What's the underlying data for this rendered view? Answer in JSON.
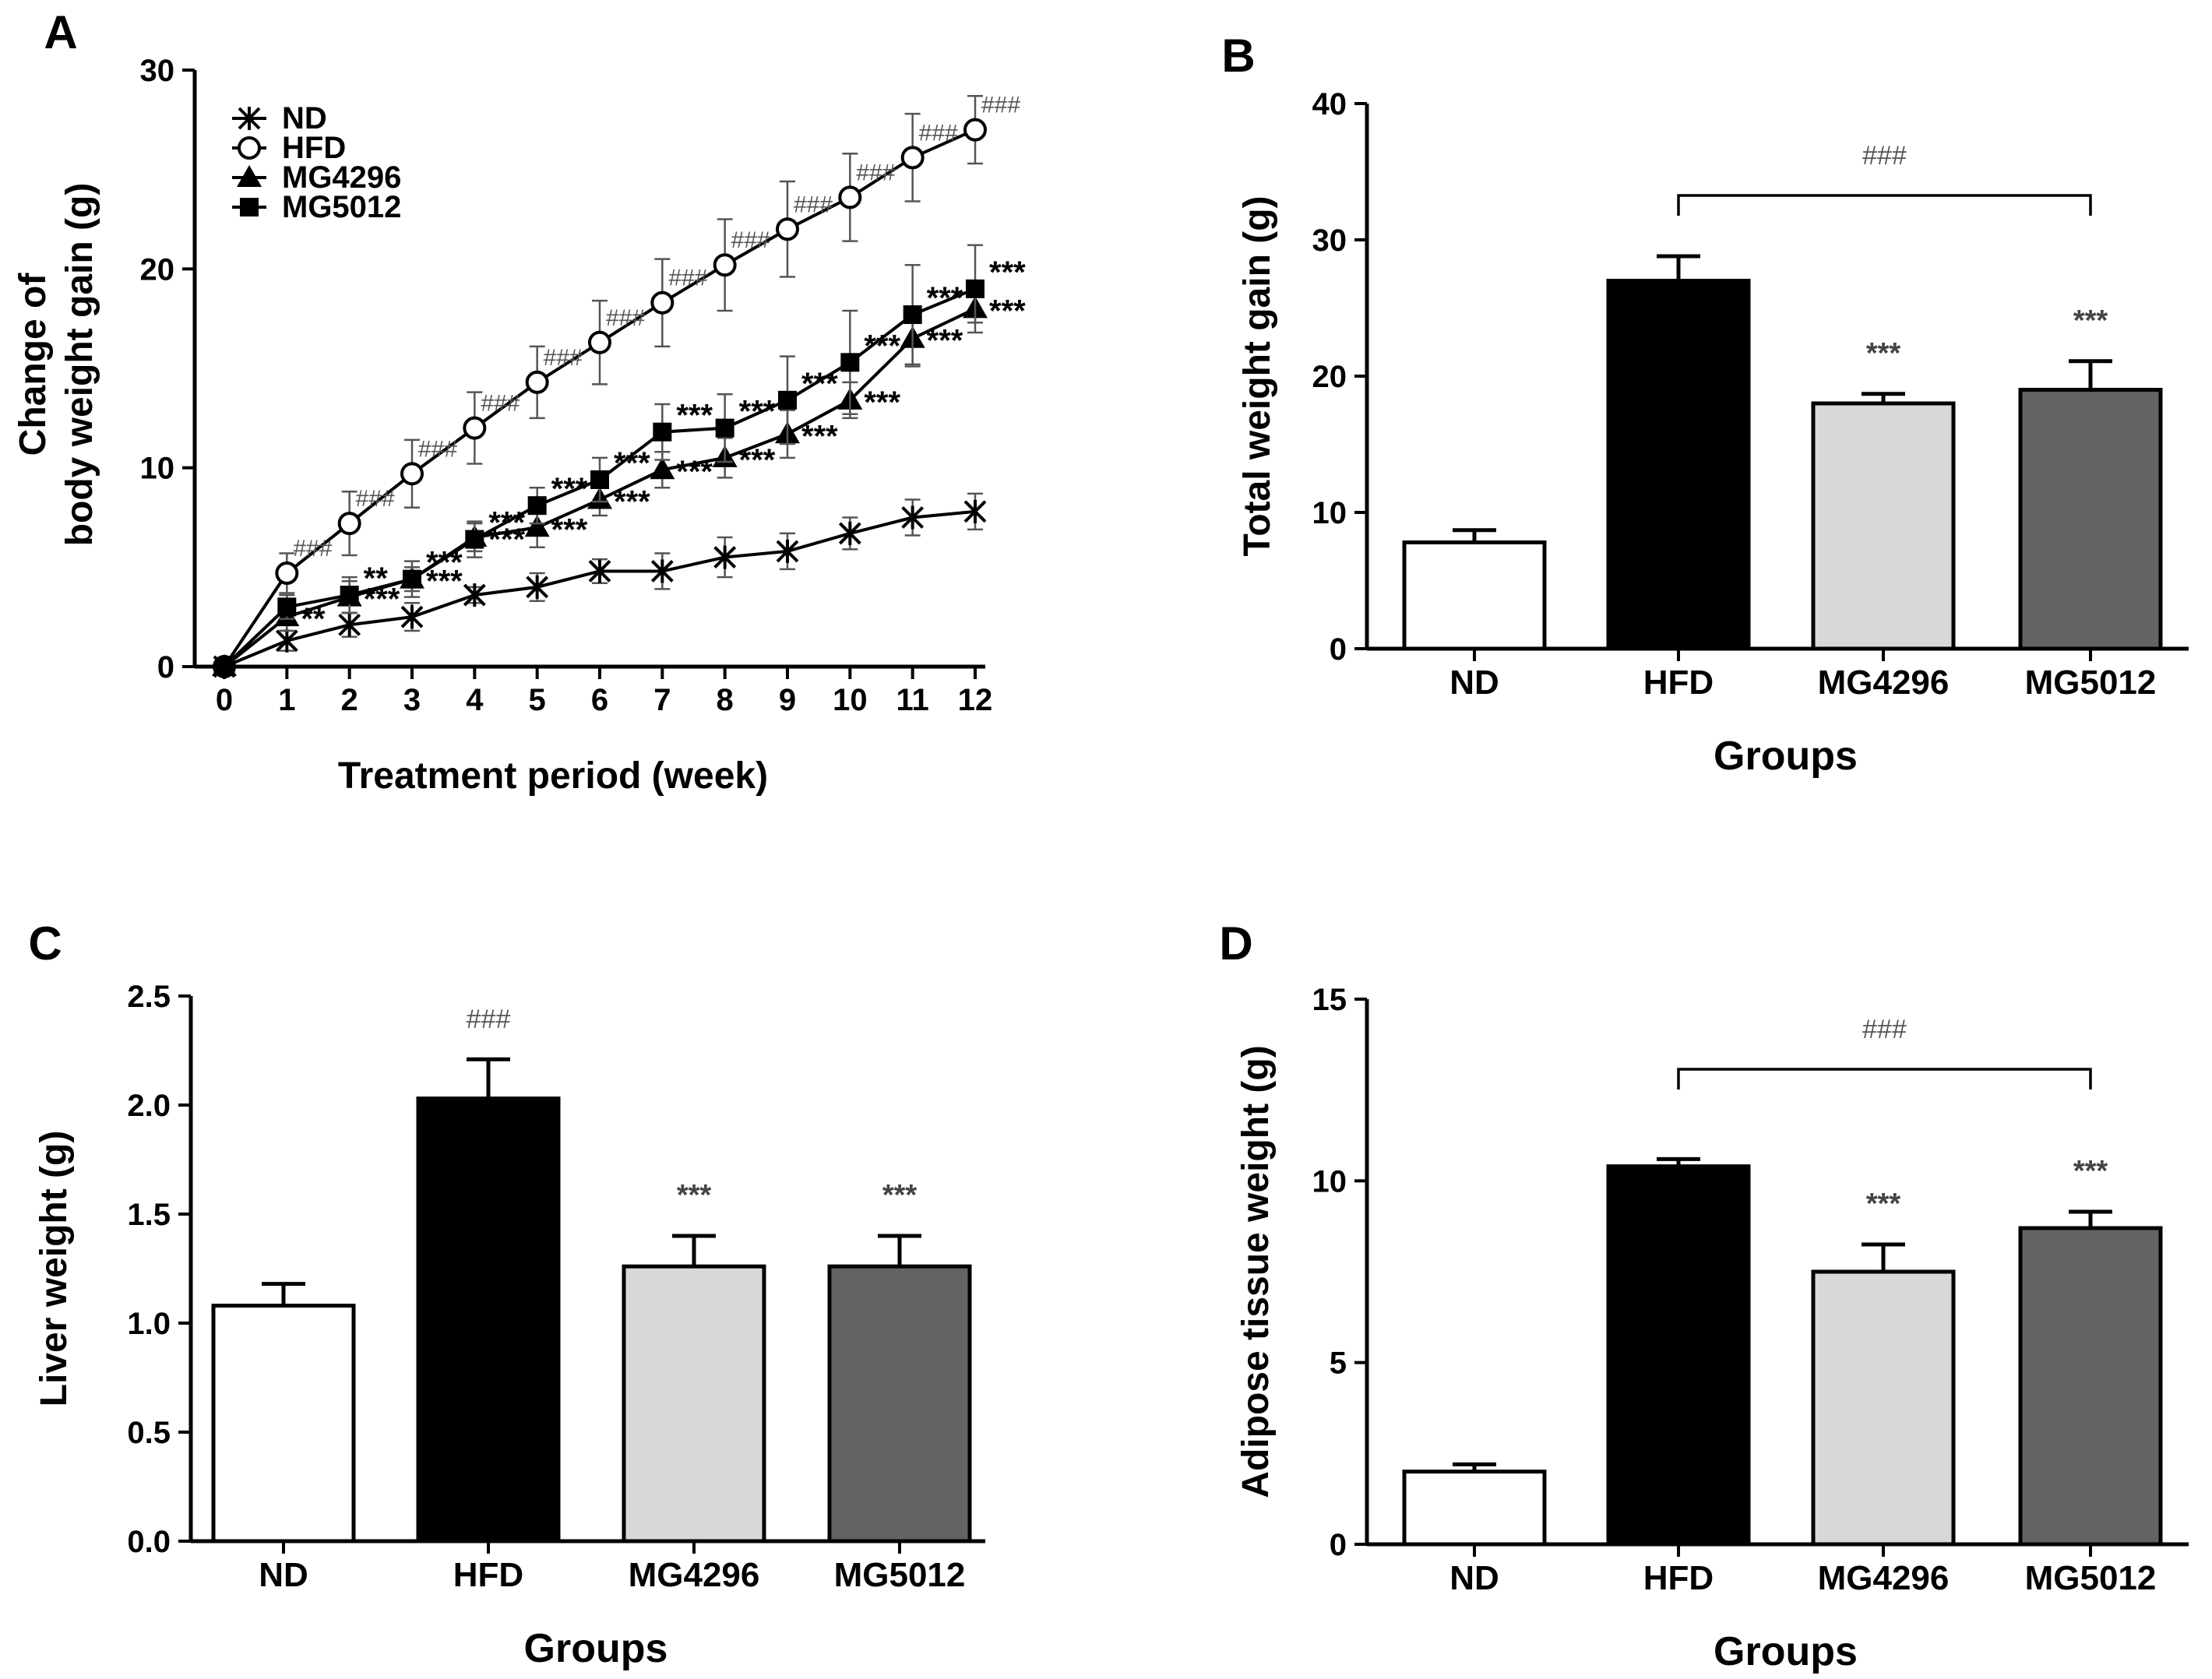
{
  "chart_data": [
    {
      "panel": "A",
      "type": "line",
      "title": "",
      "xlabel": "Treatment period (week)",
      "ylabel_lines": [
        "Change of",
        "body weight gain (g)"
      ],
      "xlim": [
        0,
        12
      ],
      "ylim": [
        0,
        30
      ],
      "xticks": [
        0,
        1,
        2,
        3,
        4,
        5,
        6,
        7,
        8,
        9,
        10,
        11,
        12
      ],
      "yticks": [
        0,
        10,
        20,
        30
      ],
      "grid": false,
      "legend_position": "top-left",
      "x": [
        0,
        1,
        2,
        3,
        4,
        5,
        6,
        7,
        8,
        9,
        10,
        11,
        12
      ],
      "series": [
        {
          "name": "ND",
          "marker": "x",
          "values": [
            0,
            1.3,
            2.1,
            2.5,
            3.6,
            4.0,
            4.8,
            4.8,
            5.5,
            5.8,
            6.7,
            7.5,
            7.8
          ],
          "errors": [
            0,
            0.5,
            0.6,
            0.7,
            0.4,
            0.7,
            0.6,
            0.9,
            1.0,
            0.9,
            0.8,
            0.9,
            0.9
          ],
          "annotations": [
            "",
            "",
            "",
            "",
            "",
            "",
            "",
            "",
            "",
            "",
            "",
            "",
            ""
          ]
        },
        {
          "name": "HFD",
          "marker": "open-circle",
          "values": [
            0,
            4.7,
            7.2,
            9.7,
            12.0,
            14.3,
            16.3,
            18.3,
            20.2,
            22.0,
            23.6,
            25.6,
            27.0
          ],
          "errors": [
            0,
            1.0,
            1.6,
            1.7,
            1.8,
            1.8,
            2.1,
            2.2,
            2.3,
            2.4,
            2.2,
            2.2,
            1.7
          ],
          "annotations": [
            "",
            "###",
            "###",
            "###",
            "###",
            "###",
            "###",
            "###",
            "###",
            "###",
            "###",
            "###",
            "###"
          ]
        },
        {
          "name": "MG4296",
          "marker": "filled-triangle",
          "values": [
            0,
            2.5,
            3.5,
            4.4,
            6.5,
            7.0,
            8.4,
            9.9,
            10.5,
            11.7,
            13.4,
            16.5,
            18.0
          ],
          "errors": [
            0,
            0.7,
            0.8,
            0.6,
            0.7,
            1.0,
            0.8,
            0.9,
            1.0,
            1.2,
            0.9,
            1.4,
            0.7
          ],
          "annotations": [
            "",
            "**",
            "***",
            "***",
            "***",
            "***",
            "***",
            "***",
            "***",
            "***",
            "***",
            "***",
            "***"
          ]
        },
        {
          "name": "MG5012",
          "marker": "filled-square",
          "values": [
            0,
            3.0,
            3.6,
            4.4,
            6.4,
            8.1,
            9.4,
            11.8,
            12.0,
            13.4,
            15.3,
            17.7,
            19.0
          ],
          "errors": [
            0,
            0.6,
            0.9,
            0.9,
            0.9,
            0.9,
            1.1,
            1.4,
            1.7,
            2.2,
            2.6,
            2.5,
            2.2
          ],
          "annotations": [
            "",
            "",
            "**",
            "***",
            "***",
            "***",
            "***",
            "***",
            "***",
            "***",
            "***",
            "***",
            "***"
          ]
        }
      ]
    },
    {
      "panel": "B",
      "type": "bar",
      "title": "",
      "xlabel": "Groups",
      "ylabel": "Total weight gain (g)",
      "ylim": [
        0,
        40
      ],
      "yticks": [
        0,
        10,
        20,
        30,
        40
      ],
      "categories": [
        "ND",
        "HFD",
        "MG4296",
        "MG5012"
      ],
      "values": [
        7.8,
        27.0,
        18.0,
        19.0
      ],
      "errors": [
        0.9,
        1.8,
        0.7,
        2.1
      ],
      "colors": [
        "#ffffff",
        "#000000",
        "#d8d8d8",
        "#636363"
      ],
      "annotations": [
        "",
        "",
        "***",
        "***"
      ],
      "bracket": {
        "from": "HFD",
        "to": "MG5012",
        "label": "###"
      }
    },
    {
      "panel": "C",
      "type": "bar",
      "title": "",
      "xlabel": "Groups",
      "ylabel": "Liver weight (g)",
      "ylim": [
        0,
        2.5
      ],
      "yticks": [
        "0.0",
        "0.5",
        "1.0",
        "1.5",
        "2.0",
        "2.5"
      ],
      "categories": [
        "ND",
        "HFD",
        "MG4296",
        "MG5012"
      ],
      "values": [
        1.08,
        2.03,
        1.26,
        1.26
      ],
      "errors": [
        0.1,
        0.18,
        0.14,
        0.14
      ],
      "colors": [
        "#ffffff",
        "#000000",
        "#d8d8d8",
        "#636363"
      ],
      "annotations": [
        "",
        "###",
        "***",
        "***"
      ]
    },
    {
      "panel": "D",
      "type": "bar",
      "title": "",
      "xlabel": "Groups",
      "ylabel": "Adipose tissue weight (g)",
      "ylim": [
        0,
        15
      ],
      "yticks": [
        0,
        5,
        10,
        15
      ],
      "categories": [
        "ND",
        "HFD",
        "MG4296",
        "MG5012"
      ],
      "values": [
        2.0,
        10.4,
        7.5,
        8.7
      ],
      "errors": [
        0.2,
        0.2,
        0.75,
        0.45
      ],
      "colors": [
        "#ffffff",
        "#000000",
        "#d8d8d8",
        "#636363"
      ],
      "annotations": [
        "",
        "",
        "***",
        "***"
      ],
      "bracket": {
        "from": "HFD",
        "to": "MG5012",
        "label": "###"
      }
    }
  ]
}
